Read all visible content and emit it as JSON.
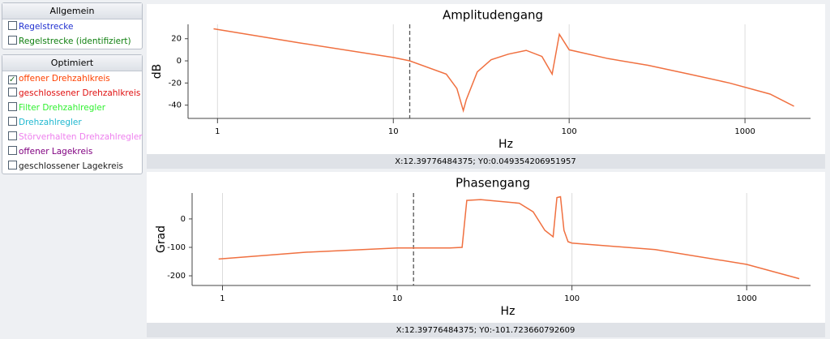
{
  "sidebar": {
    "groups": [
      {
        "title": "Allgemein",
        "items": [
          {
            "label": "Regelstrecke",
            "color": "#2030d0",
            "checked": false
          },
          {
            "label": "Regelstrecke (identifiziert)",
            "color": "#108010",
            "checked": false
          }
        ]
      },
      {
        "title": "Optimiert",
        "items": [
          {
            "label": "offener Drehzahlkreis",
            "color": "#ff4000",
            "checked": true
          },
          {
            "label": "geschlossener Drehzahlkreis",
            "color": "#e01010",
            "checked": false
          },
          {
            "label": "Filter Drehzahlregler",
            "color": "#30f030",
            "checked": false
          },
          {
            "label": "Drehzahlregler",
            "color": "#20b8d0",
            "checked": false
          },
          {
            "label": "Störverhalten Drehzahlregler",
            "color": "#ee80ee",
            "checked": false
          },
          {
            "label": "offener Lagekreis",
            "color": "#800080",
            "checked": false
          },
          {
            "label": "geschlossener Lagekreis",
            "color": "#202020",
            "checked": false
          }
        ]
      }
    ]
  },
  "chart_data": [
    {
      "type": "line",
      "title": "Amplitudengang",
      "x_label": "Hz",
      "y_label": "dB",
      "xscale": "log",
      "grid": true,
      "color": "#f07040",
      "x": [
        0.95,
        3,
        10,
        12.4,
        20,
        23,
        25,
        26,
        30,
        36,
        45,
        57,
        70,
        80,
        88,
        100,
        167,
        281,
        481,
        815,
        1390,
        1900
      ],
      "values": [
        29,
        16,
        3,
        0,
        -12,
        -25,
        -45,
        -35,
        -10,
        1,
        6,
        9.5,
        4,
        -12,
        24,
        10,
        2,
        -4,
        -12,
        -20,
        -30,
        -41
      ],
      "xlim": [
        0.68,
        2360
      ],
      "ylim": [
        -52,
        33
      ],
      "xticks": [
        1,
        10,
        100,
        1000
      ],
      "yticks": [
        20,
        0,
        -20,
        -40
      ],
      "cursor_x": 12.39776484375,
      "status": "X:12.39776484375; Y0:0.049354206951957"
    },
    {
      "type": "line",
      "title": "Phasengang",
      "x_label": "Hz",
      "y_label": "Grad",
      "xscale": "log",
      "grid": true,
      "color": "#f07040",
      "x": [
        0.95,
        3,
        10,
        20,
        23.5,
        25,
        30,
        50,
        60,
        70,
        78,
        82,
        86,
        90,
        95,
        100,
        300,
        1000,
        2000
      ],
      "values": [
        -141,
        -117,
        -102,
        -102,
        -100,
        65,
        68,
        55,
        25,
        -40,
        -63,
        75,
        78,
        -40,
        -80,
        -85,
        -108,
        -160,
        -210
      ],
      "xlim": [
        0.67,
        2320
      ],
      "ylim": [
        -234,
        91
      ],
      "xticks": [
        1,
        10,
        100,
        1000
      ],
      "yticks": [
        0,
        -100,
        -200
      ],
      "cursor_x": 12.39776484375,
      "status": "X:12.39776484375; Y0:-101.723660792609"
    }
  ]
}
